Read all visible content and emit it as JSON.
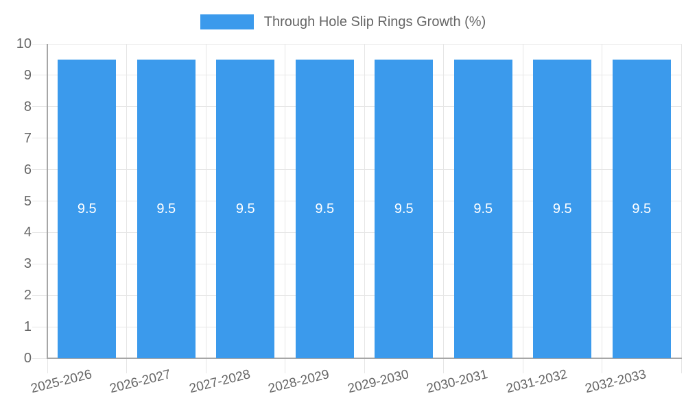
{
  "legend": {
    "label": "Through Hole Slip Rings Growth (%)"
  },
  "colors": {
    "bar": "#3B9AEC",
    "bar_label": "#FFFFFF",
    "axis_text": "#666666",
    "grid": "#E6E6E6",
    "axis_line": "#A6A6A6",
    "background": "#FFFFFF"
  },
  "chart_data": {
    "type": "bar",
    "title": "Through Hole Slip Rings Growth (%)",
    "categories": [
      "2025-2026",
      "2026-2027",
      "2027-2028",
      "2028-2029",
      "2029-2030",
      "2030-2031",
      "2031-2032",
      "2032-2033"
    ],
    "series": [
      {
        "name": "Through Hole Slip Rings Growth (%)",
        "values": [
          9.5,
          9.5,
          9.5,
          9.5,
          9.5,
          9.5,
          9.5,
          9.5
        ]
      }
    ],
    "bar_value_labels": [
      "9.5",
      "9.5",
      "9.5",
      "9.5",
      "9.5",
      "9.5",
      "9.5",
      "9.5"
    ],
    "xlabel": "",
    "ylabel": "",
    "ylim": [
      0,
      10
    ],
    "ytick_step": 1,
    "ytick_labels": [
      "0",
      "1",
      "2",
      "3",
      "4",
      "5",
      "6",
      "7",
      "8",
      "9",
      "10"
    ],
    "grid": true,
    "legend_position": "top",
    "x_label_rotation_deg": -14
  }
}
